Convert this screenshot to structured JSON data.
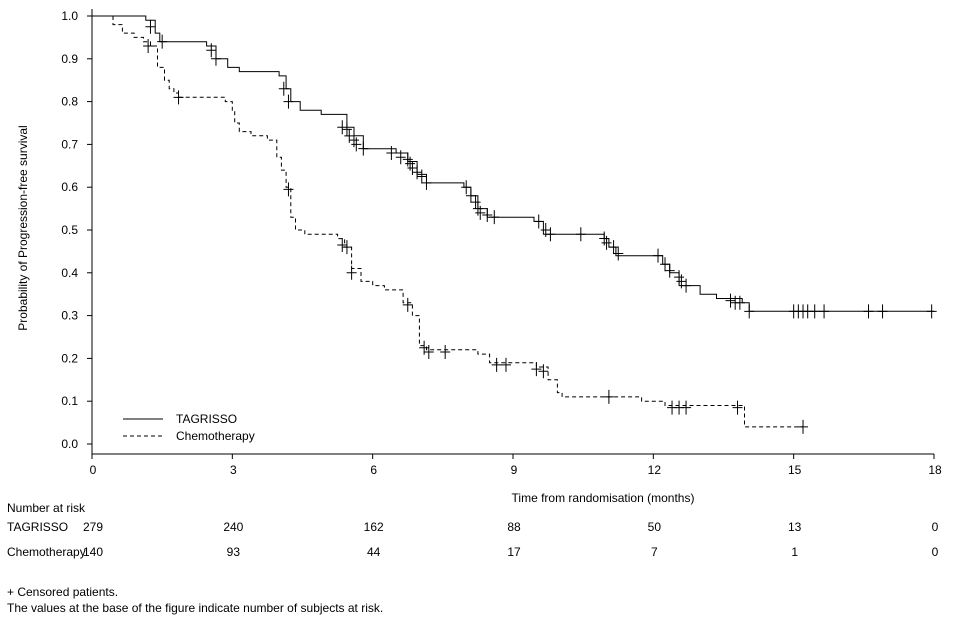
{
  "chart_data": {
    "type": "line",
    "title": "",
    "xlabel": "Time from randomisation (months)",
    "ylabel": "Probability of Progression-free survival",
    "xlim": [
      0,
      18
    ],
    "ylim": [
      0,
      1.0
    ],
    "x_ticks": [
      0,
      3,
      6,
      9,
      12,
      15,
      18
    ],
    "x_tick_labels": [
      "0",
      "3",
      "6",
      "9",
      "12",
      "15",
      "18"
    ],
    "y_ticks": [
      0,
      0.1,
      0.2,
      0.3,
      0.4,
      0.5,
      0.6,
      0.7,
      0.8,
      0.9,
      1.0
    ],
    "y_tick_labels": [
      "0.0",
      "0.1",
      "0.2",
      "0.3",
      "0.4",
      "0.5",
      "0.6",
      "0.7",
      "0.8",
      "0.9",
      "1.0"
    ],
    "legend_position": "bottom-left",
    "series": [
      {
        "name": "TAGRISSO",
        "style": "solid",
        "color": "#000000",
        "steps": [
          [
            0,
            1.0
          ],
          [
            1.15,
            0.99
          ],
          [
            1.35,
            0.96
          ],
          [
            1.45,
            0.94
          ],
          [
            2.45,
            0.93
          ],
          [
            2.65,
            0.9
          ],
          [
            2.9,
            0.88
          ],
          [
            3.15,
            0.87
          ],
          [
            3.5,
            0.87
          ],
          [
            4.0,
            0.86
          ],
          [
            4.15,
            0.83
          ],
          [
            4.25,
            0.8
          ],
          [
            4.45,
            0.78
          ],
          [
            4.9,
            0.77
          ],
          [
            5.4,
            0.77
          ],
          [
            5.45,
            0.74
          ],
          [
            5.6,
            0.72
          ],
          [
            5.8,
            0.69
          ],
          [
            6.5,
            0.68
          ],
          [
            6.75,
            0.66
          ],
          [
            6.95,
            0.63
          ],
          [
            7.15,
            0.61
          ],
          [
            7.95,
            0.6
          ],
          [
            8.1,
            0.58
          ],
          [
            8.25,
            0.55
          ],
          [
            8.45,
            0.53
          ],
          [
            9.45,
            0.52
          ],
          [
            9.65,
            0.49
          ],
          [
            10.8,
            0.49
          ],
          [
            10.95,
            0.48
          ],
          [
            11.05,
            0.46
          ],
          [
            11.2,
            0.44
          ],
          [
            12.0,
            0.44
          ],
          [
            12.2,
            0.42
          ],
          [
            12.35,
            0.4
          ],
          [
            12.55,
            0.37
          ],
          [
            13.0,
            0.35
          ],
          [
            13.35,
            0.34
          ],
          [
            13.9,
            0.33
          ],
          [
            14.05,
            0.31
          ],
          [
            18.0,
            0.31
          ]
        ],
        "censored": [
          [
            0.0,
            1.0
          ],
          [
            1.25,
            0.975
          ],
          [
            1.5,
            0.94
          ],
          [
            2.55,
            0.92
          ],
          [
            2.65,
            0.9
          ],
          [
            4.1,
            0.83
          ],
          [
            4.2,
            0.8
          ],
          [
            5.35,
            0.74
          ],
          [
            5.45,
            0.735
          ],
          [
            5.5,
            0.72
          ],
          [
            5.6,
            0.71
          ],
          [
            5.65,
            0.7
          ],
          [
            5.8,
            0.69
          ],
          [
            6.4,
            0.68
          ],
          [
            6.6,
            0.67
          ],
          [
            6.75,
            0.665
          ],
          [
            6.8,
            0.655
          ],
          [
            6.85,
            0.645
          ],
          [
            6.95,
            0.635
          ],
          [
            7.05,
            0.625
          ],
          [
            7.15,
            0.61
          ],
          [
            8.0,
            0.6
          ],
          [
            8.1,
            0.58
          ],
          [
            8.2,
            0.565
          ],
          [
            8.25,
            0.55
          ],
          [
            8.3,
            0.54
          ],
          [
            8.45,
            0.535
          ],
          [
            8.6,
            0.53
          ],
          [
            9.55,
            0.52
          ],
          [
            9.7,
            0.5
          ],
          [
            9.8,
            0.49
          ],
          [
            10.45,
            0.49
          ],
          [
            10.95,
            0.48
          ],
          [
            11.0,
            0.47
          ],
          [
            11.15,
            0.46
          ],
          [
            11.25,
            0.445
          ],
          [
            12.1,
            0.44
          ],
          [
            12.25,
            0.42
          ],
          [
            12.35,
            0.405
          ],
          [
            12.55,
            0.39
          ],
          [
            12.6,
            0.38
          ],
          [
            12.7,
            0.37
          ],
          [
            13.65,
            0.335
          ],
          [
            13.75,
            0.33
          ],
          [
            13.85,
            0.33
          ],
          [
            14.05,
            0.31
          ],
          [
            15.0,
            0.31
          ],
          [
            15.1,
            0.31
          ],
          [
            15.2,
            0.31
          ],
          [
            15.3,
            0.31
          ],
          [
            15.45,
            0.31
          ],
          [
            15.65,
            0.31
          ],
          [
            16.6,
            0.31
          ],
          [
            16.9,
            0.31
          ],
          [
            17.95,
            0.31
          ]
        ]
      },
      {
        "name": "Chemotherapy",
        "style": "dashed",
        "color": "#000000",
        "steps": [
          [
            0,
            1.0
          ],
          [
            0.45,
            0.98
          ],
          [
            0.65,
            0.96
          ],
          [
            0.9,
            0.95
          ],
          [
            1.1,
            0.94
          ],
          [
            1.25,
            0.93
          ],
          [
            1.4,
            0.88
          ],
          [
            1.55,
            0.85
          ],
          [
            1.65,
            0.83
          ],
          [
            1.75,
            0.82
          ],
          [
            1.85,
            0.81
          ],
          [
            2.6,
            0.81
          ],
          [
            2.85,
            0.8
          ],
          [
            3.0,
            0.78
          ],
          [
            3.05,
            0.75
          ],
          [
            3.15,
            0.73
          ],
          [
            3.4,
            0.72
          ],
          [
            3.75,
            0.71
          ],
          [
            3.95,
            0.67
          ],
          [
            4.05,
            0.64
          ],
          [
            4.15,
            0.6
          ],
          [
            4.25,
            0.53
          ],
          [
            4.35,
            0.5
          ],
          [
            4.55,
            0.49
          ],
          [
            5.25,
            0.48
          ],
          [
            5.4,
            0.46
          ],
          [
            5.55,
            0.41
          ],
          [
            5.75,
            0.38
          ],
          [
            6.0,
            0.37
          ],
          [
            6.25,
            0.36
          ],
          [
            6.65,
            0.33
          ],
          [
            6.85,
            0.3
          ],
          [
            7.0,
            0.23
          ],
          [
            7.15,
            0.22
          ],
          [
            7.55,
            0.22
          ],
          [
            8.25,
            0.21
          ],
          [
            8.5,
            0.19
          ],
          [
            9.5,
            0.18
          ],
          [
            9.75,
            0.15
          ],
          [
            9.95,
            0.12
          ],
          [
            10.05,
            0.11
          ],
          [
            11.5,
            0.11
          ],
          [
            11.75,
            0.1
          ],
          [
            12.25,
            0.09
          ],
          [
            12.75,
            0.09
          ],
          [
            13.2,
            0.09
          ],
          [
            13.95,
            0.04
          ],
          [
            15.2,
            0.04
          ]
        ],
        "censored": [
          [
            0.0,
            1.0
          ],
          [
            1.2,
            0.93
          ],
          [
            1.85,
            0.81
          ],
          [
            4.2,
            0.595
          ],
          [
            5.35,
            0.465
          ],
          [
            5.45,
            0.46
          ],
          [
            5.55,
            0.4
          ],
          [
            6.75,
            0.325
          ],
          [
            7.1,
            0.225
          ],
          [
            7.2,
            0.215
          ],
          [
            7.55,
            0.215
          ],
          [
            8.65,
            0.185
          ],
          [
            8.85,
            0.185
          ],
          [
            9.5,
            0.175
          ],
          [
            9.65,
            0.17
          ],
          [
            11.05,
            0.11
          ],
          [
            12.4,
            0.085
          ],
          [
            12.55,
            0.085
          ],
          [
            12.7,
            0.085
          ],
          [
            13.8,
            0.085
          ],
          [
            15.2,
            0.04
          ]
        ]
      }
    ],
    "risk_table": {
      "times": [
        0,
        3,
        6,
        9,
        12,
        15,
        18
      ],
      "rows": [
        {
          "label": "TAGRISSO",
          "counts": [
            "279",
            "240",
            "162",
            "88",
            "50",
            "13",
            "0"
          ]
        },
        {
          "label": "Chemotherapy",
          "counts": [
            "140",
            "93",
            "44",
            "17",
            "7",
            "1",
            "0"
          ]
        }
      ]
    }
  },
  "risk_title": "Number at risk",
  "footnotes": [
    "+ Censored patients.",
    "The values at the base of the figure indicate number of subjects at risk."
  ]
}
